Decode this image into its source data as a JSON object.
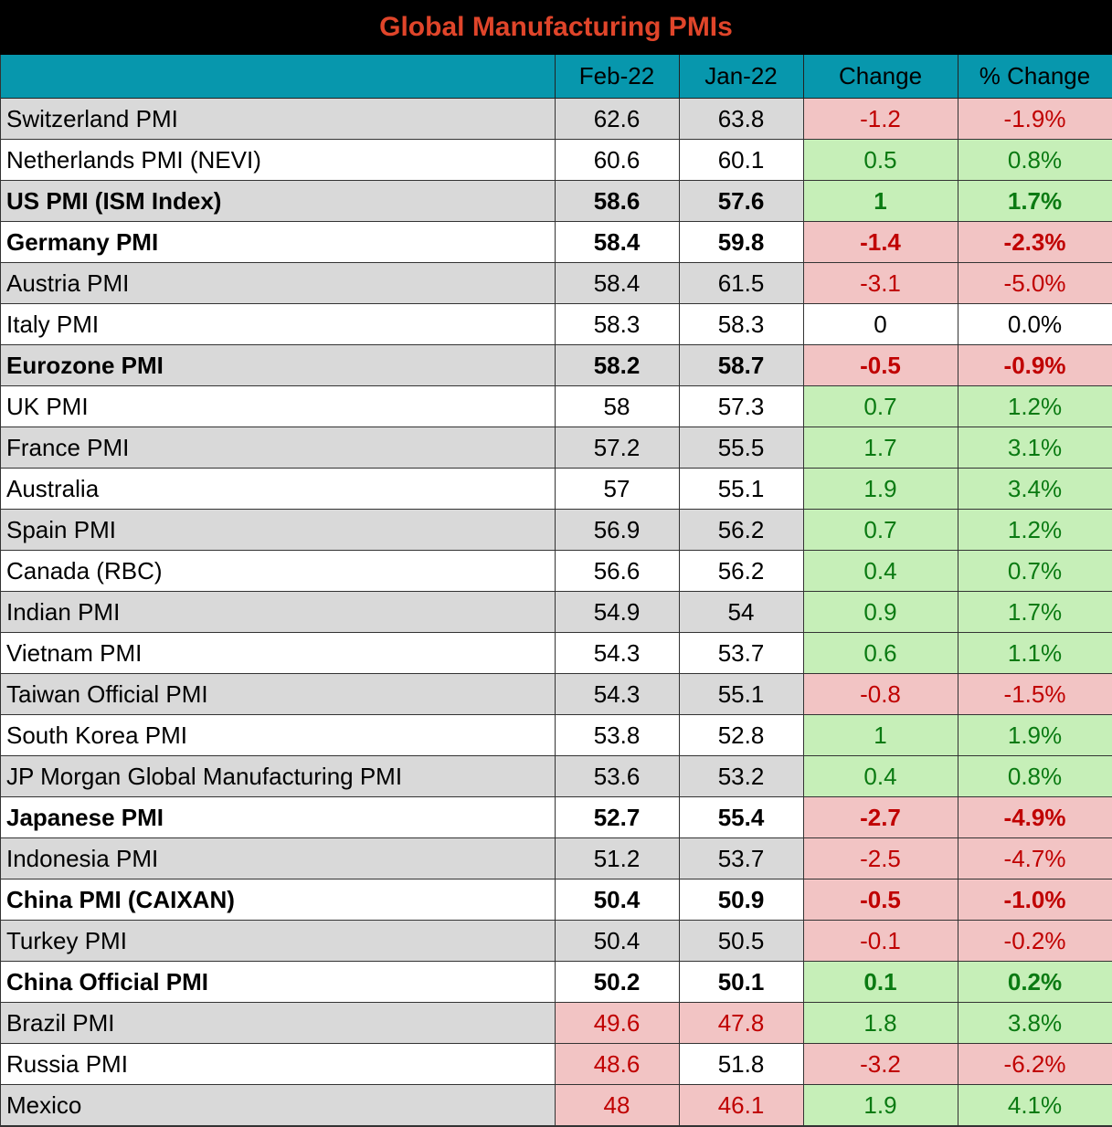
{
  "title": "Global Manufacturing PMIs",
  "colors": {
    "title_text": "#e0452a",
    "title_bg": "#000000",
    "header_bg": "#0797ad",
    "stripe_bg": "#d9d9d9",
    "negative_bg": "#f2c4c4",
    "negative_text": "#c00000",
    "positive_bg": "#c6efb8",
    "positive_text": "#0a7a12"
  },
  "headers": [
    "",
    "Feb-22",
    "Jan-22",
    "Change",
    "% Change"
  ],
  "rows": [
    {
      "name": "Switzerland PMI",
      "feb": "62.6",
      "jan": "63.8",
      "change": "-1.2",
      "pct": "-1.9%",
      "bold": false
    },
    {
      "name": "Netherlands PMI (NEVI)",
      "feb": "60.6",
      "jan": "60.1",
      "change": "0.5",
      "pct": "0.8%",
      "bold": false
    },
    {
      "name": "US PMI (ISM Index)",
      "feb": "58.6",
      "jan": "57.6",
      "change": "1",
      "pct": "1.7%",
      "bold": true
    },
    {
      "name": "Germany PMI",
      "feb": "58.4",
      "jan": "59.8",
      "change": "-1.4",
      "pct": "-2.3%",
      "bold": true
    },
    {
      "name": "Austria PMI",
      "feb": "58.4",
      "jan": "61.5",
      "change": "-3.1",
      "pct": "-5.0%",
      "bold": false
    },
    {
      "name": "Italy PMI",
      "feb": "58.3",
      "jan": "58.3",
      "change": "0",
      "pct": "0.0%",
      "bold": false
    },
    {
      "name": "Eurozone PMI",
      "feb": "58.2",
      "jan": "58.7",
      "change": "-0.5",
      "pct": "-0.9%",
      "bold": true
    },
    {
      "name": "UK PMI",
      "feb": "58",
      "jan": "57.3",
      "change": "0.7",
      "pct": "1.2%",
      "bold": false
    },
    {
      "name": "France PMI",
      "feb": "57.2",
      "jan": "55.5",
      "change": "1.7",
      "pct": "3.1%",
      "bold": false
    },
    {
      "name": "Australia",
      "feb": "57",
      "jan": "55.1",
      "change": "1.9",
      "pct": "3.4%",
      "bold": false
    },
    {
      "name": "Spain PMI",
      "feb": "56.9",
      "jan": "56.2",
      "change": "0.7",
      "pct": "1.2%",
      "bold": false
    },
    {
      "name": "Canada (RBC)",
      "feb": "56.6",
      "jan": "56.2",
      "change": "0.4",
      "pct": "0.7%",
      "bold": false
    },
    {
      "name": "Indian PMI",
      "feb": "54.9",
      "jan": "54",
      "change": "0.9",
      "pct": "1.7%",
      "bold": false
    },
    {
      "name": "Vietnam PMI",
      "feb": "54.3",
      "jan": "53.7",
      "change": "0.6",
      "pct": "1.1%",
      "bold": false
    },
    {
      "name": "Taiwan Official PMI",
      "feb": "54.3",
      "jan": "55.1",
      "change": "-0.8",
      "pct": "-1.5%",
      "bold": false
    },
    {
      "name": "South Korea PMI",
      "feb": "53.8",
      "jan": "52.8",
      "change": "1",
      "pct": "1.9%",
      "bold": false
    },
    {
      "name": "JP Morgan Global Manufacturing PMI",
      "feb": "53.6",
      "jan": "53.2",
      "change": "0.4",
      "pct": "0.8%",
      "bold": false
    },
    {
      "name": "Japanese PMI",
      "feb": "52.7",
      "jan": "55.4",
      "change": "-2.7",
      "pct": "-4.9%",
      "bold": true
    },
    {
      "name": "Indonesia PMI",
      "feb": "51.2",
      "jan": "53.7",
      "change": "-2.5",
      "pct": "-4.7%",
      "bold": false
    },
    {
      "name": "China PMI (CAIXAN)",
      "feb": "50.4",
      "jan": "50.9",
      "change": "-0.5",
      "pct": "-1.0%",
      "bold": true
    },
    {
      "name": "Turkey PMI",
      "feb": "50.4",
      "jan": "50.5",
      "change": "-0.1",
      "pct": "-0.2%",
      "bold": false
    },
    {
      "name": "China Official PMI",
      "feb": "50.2",
      "jan": "50.1",
      "change": "0.1",
      "pct": "0.2%",
      "bold": true
    },
    {
      "name": "Brazil PMI",
      "feb": "49.6",
      "jan": "47.8",
      "change": "1.8",
      "pct": "3.8%",
      "bold": false
    },
    {
      "name": "Russia PMI",
      "feb": "48.6",
      "jan": "51.8",
      "change": "-3.2",
      "pct": "-6.2%",
      "bold": false
    },
    {
      "name": "Mexico",
      "feb": "48",
      "jan": "46.1",
      "change": "1.9",
      "pct": "4.1%",
      "bold": false
    }
  ],
  "chart_data": {
    "type": "table",
    "title": "Global Manufacturing PMIs",
    "columns": [
      "Feb-22",
      "Jan-22",
      "Change",
      "% Change"
    ],
    "threshold": 50,
    "rows": [
      [
        "Switzerland PMI",
        62.6,
        63.8,
        -1.2,
        -1.9
      ],
      [
        "Netherlands PMI (NEVI)",
        60.6,
        60.1,
        0.5,
        0.8
      ],
      [
        "US PMI (ISM Index)",
        58.6,
        57.6,
        1,
        1.7
      ],
      [
        "Germany PMI",
        58.4,
        59.8,
        -1.4,
        -2.3
      ],
      [
        "Austria PMI",
        58.4,
        61.5,
        -3.1,
        -5.0
      ],
      [
        "Italy PMI",
        58.3,
        58.3,
        0,
        0.0
      ],
      [
        "Eurozone PMI",
        58.2,
        58.7,
        -0.5,
        -0.9
      ],
      [
        "UK PMI",
        58,
        57.3,
        0.7,
        1.2
      ],
      [
        "France PMI",
        57.2,
        55.5,
        1.7,
        3.1
      ],
      [
        "Australia",
        57,
        55.1,
        1.9,
        3.4
      ],
      [
        "Spain PMI",
        56.9,
        56.2,
        0.7,
        1.2
      ],
      [
        "Canada (RBC)",
        56.6,
        56.2,
        0.4,
        0.7
      ],
      [
        "Indian PMI",
        54.9,
        54,
        0.9,
        1.7
      ],
      [
        "Vietnam PMI",
        54.3,
        53.7,
        0.6,
        1.1
      ],
      [
        "Taiwan Official PMI",
        54.3,
        55.1,
        -0.8,
        -1.5
      ],
      [
        "South Korea PMI",
        53.8,
        52.8,
        1,
        1.9
      ],
      [
        "JP Morgan Global Manufacturing PMI",
        53.6,
        53.2,
        0.4,
        0.8
      ],
      [
        "Japanese PMI",
        52.7,
        55.4,
        -2.7,
        -4.9
      ],
      [
        "Indonesia PMI",
        51.2,
        53.7,
        -2.5,
        -4.7
      ],
      [
        "China PMI (CAIXAN)",
        50.4,
        50.9,
        -0.5,
        -1.0
      ],
      [
        "Turkey PMI",
        50.4,
        50.5,
        -0.1,
        -0.2
      ],
      [
        "China Official PMI",
        50.2,
        50.1,
        0.1,
        0.2
      ],
      [
        "Brazil PMI",
        49.6,
        47.8,
        1.8,
        3.8
      ],
      [
        "Russia PMI",
        48.6,
        51.8,
        -3.2,
        -6.2
      ],
      [
        "Mexico",
        48,
        46.1,
        1.9,
        4.1
      ]
    ]
  }
}
